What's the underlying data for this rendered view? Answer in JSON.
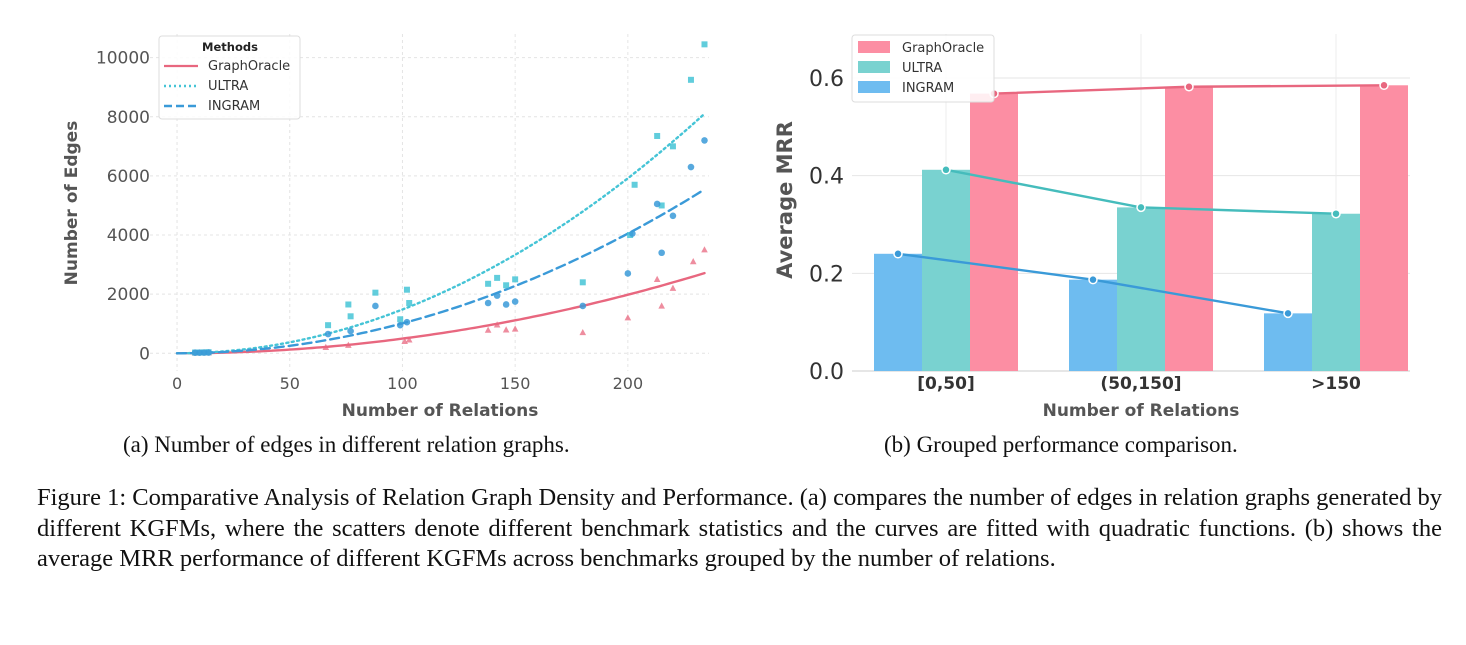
{
  "chart_data": [
    {
      "type": "scatter",
      "xlabel": "Number of Relations",
      "ylabel": "Number of Edges",
      "xlim": [
        -12,
        236
      ],
      "ylim": [
        -600,
        10800
      ],
      "x_ticks": [
        0,
        50,
        100,
        150,
        200
      ],
      "y_ticks": [
        0,
        2000,
        4000,
        6000,
        8000,
        10000
      ],
      "grid": true,
      "legend": {
        "title": "Methods",
        "position": "top-left",
        "entries": [
          "GraphOracle",
          "ULTRA",
          "INGRAM"
        ]
      },
      "series": [
        {
          "name": "GraphOracle",
          "color": "#e8677f",
          "marker": "triangle",
          "curve_style": "solid",
          "fit_coeffs": [
            0.0495,
            0,
            0
          ],
          "points": [
            [
              8,
              10
            ],
            [
              10,
              12
            ],
            [
              12,
              15
            ],
            [
              14,
              18
            ],
            [
              66,
              200
            ],
            [
              76,
              270
            ],
            [
              101,
              400
            ],
            [
              103,
              450
            ],
            [
              138,
              780
            ],
            [
              142,
              960
            ],
            [
              146,
              790
            ],
            [
              150,
              820
            ],
            [
              180,
              700
            ],
            [
              200,
              1200
            ],
            [
              213,
              2500
            ],
            [
              215,
              1600
            ],
            [
              220,
              2200
            ],
            [
              229,
              3100
            ],
            [
              234,
              3500
            ]
          ]
        },
        {
          "name": "ULTRA",
          "color": "#45c4d6",
          "marker": "square",
          "curve_style": "dotted",
          "fit_coeffs": [
            0.148,
            0,
            0
          ],
          "points": [
            [
              8,
              25
            ],
            [
              10,
              25
            ],
            [
              12,
              30
            ],
            [
              14,
              35
            ],
            [
              67,
              950
            ],
            [
              76,
              1650
            ],
            [
              77,
              1250
            ],
            [
              88,
              2050
            ],
            [
              99,
              1150
            ],
            [
              102,
              2150
            ],
            [
              103,
              1700
            ],
            [
              138,
              2350
            ],
            [
              142,
              2550
            ],
            [
              146,
              2300
            ],
            [
              150,
              2500
            ],
            [
              180,
              2400
            ],
            [
              201,
              4000
            ],
            [
              203,
              5700
            ],
            [
              213,
              7350
            ],
            [
              215,
              5000
            ],
            [
              220,
              7000
            ],
            [
              228,
              9250
            ],
            [
              234,
              10450
            ]
          ]
        },
        {
          "name": "INGRAM",
          "color": "#3a9ad8",
          "marker": "circle",
          "curve_style": "dashed",
          "fit_coeffs": [
            0.1012,
            0,
            0
          ],
          "points": [
            [
              8,
              20
            ],
            [
              10,
              20
            ],
            [
              12,
              22
            ],
            [
              14,
              25
            ],
            [
              67,
              650
            ],
            [
              77,
              750
            ],
            [
              88,
              1600
            ],
            [
              99,
              950
            ],
            [
              102,
              1050
            ],
            [
              138,
              1700
            ],
            [
              142,
              1950
            ],
            [
              146,
              1650
            ],
            [
              150,
              1750
            ],
            [
              180,
              1600
            ],
            [
              200,
              2700
            ],
            [
              202,
              4050
            ],
            [
              213,
              5050
            ],
            [
              215,
              3400
            ],
            [
              220,
              4650
            ],
            [
              228,
              6300
            ],
            [
              234,
              7200
            ]
          ]
        }
      ]
    },
    {
      "type": "bar",
      "xlabel": "Number of Relations",
      "ylabel": "Average MRR",
      "ylim": [
        0,
        0.69
      ],
      "y_ticks": [
        0.0,
        0.2,
        0.4,
        0.6
      ],
      "categories": [
        "[0,50]",
        "(50,150]",
        ">150"
      ],
      "grid": true,
      "legend": {
        "position": "top-left",
        "entries": [
          "GraphOracle",
          "ULTRA",
          "INGRAM"
        ]
      },
      "series": [
        {
          "name": "INGRAM",
          "color": "#6ebcf0",
          "line_color": "#3a9ad8",
          "values": [
            0.24,
            0.187,
            0.118
          ]
        },
        {
          "name": "ULTRA",
          "color": "#79d2d0",
          "line_color": "#45bcbc",
          "values": [
            0.412,
            0.335,
            0.322
          ]
        },
        {
          "name": "GraphOracle",
          "color": "#fc8ea3",
          "line_color": "#e8677f",
          "values": [
            0.568,
            0.582,
            0.585
          ]
        }
      ]
    }
  ],
  "captions": {
    "a": "(a) Number of edges in different relation graphs.",
    "b": "(b) Grouped performance comparison.",
    "figure": "Figure 1: Comparative Analysis of Relation Graph Density and Performance. (a) compares the number of edges in relation graphs generated by different KGFMs, where the scatters denote different benchmark statistics and the curves are fitted with quadratic functions. (b) shows the average MRR performance of different KGFMs across benchmarks grouped by the number of relations."
  }
}
